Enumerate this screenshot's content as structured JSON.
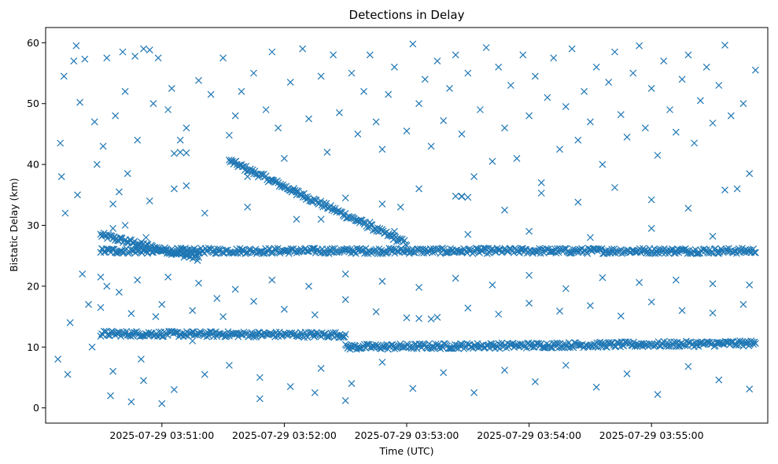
{
  "chart_data": {
    "type": "scatter",
    "title": "Detections in Delay",
    "xlabel": "Time (UTC)",
    "ylabel": "Bistatic Delay (km)",
    "marker": "x",
    "color": "#1f77b4",
    "x_unit": "minutes after 2025-07-29 03:50:00 UTC",
    "xlim": [
      -0.45,
      5.45
    ],
    "ylim": [
      -2.5,
      62.5
    ],
    "x_ticks": [
      {
        "value": 0.5,
        "label": "2025-07-29 03:51:00"
      },
      {
        "value": 1.5,
        "label": "2025-07-29 03:52:00"
      },
      {
        "value": 2.5,
        "label": "2025-07-29 03:53:00"
      },
      {
        "value": 3.5,
        "label": "2025-07-29 03:54:00"
      },
      {
        "value": 4.5,
        "label": "2025-07-29 03:55:00"
      }
    ],
    "y_ticks": [
      0,
      10,
      20,
      30,
      40,
      50,
      60
    ],
    "grid": false,
    "legend": "none",
    "tracks": [
      {
        "description": "descending track",
        "x_start": 0.0,
        "x_end": 0.8,
        "y_start": 28.4,
        "y_end": 24.6
      },
      {
        "description": "descending track",
        "x_start": 1.05,
        "x_end": 2.5,
        "y_start": 40.6,
        "y_end": 27.0
      },
      {
        "description": "steady track",
        "x_start": 0.0,
        "x_end": 5.35,
        "y_start": 25.8,
        "y_end": 25.8
      },
      {
        "description": "steady track",
        "x_start": 0.0,
        "x_end": 2.0,
        "y_start": 12.2,
        "y_end": 12.0
      },
      {
        "description": "steady track",
        "x_start": 2.0,
        "x_end": 5.35,
        "y_start": 10.0,
        "y_end": 10.6
      }
    ],
    "series": [
      {
        "points": [
          [
            -0.35,
            8
          ],
          [
            -0.33,
            43.5
          ],
          [
            -0.32,
            38
          ],
          [
            -0.3,
            54.5
          ],
          [
            -0.29,
            32
          ],
          [
            -0.27,
            5.5
          ],
          [
            -0.25,
            14
          ],
          [
            -0.22,
            57
          ],
          [
            -0.2,
            59.5
          ],
          [
            -0.19,
            35
          ],
          [
            -0.17,
            50.2
          ],
          [
            -0.15,
            22
          ],
          [
            -0.13,
            57.3
          ],
          [
            -0.1,
            17
          ],
          [
            -0.07,
            10
          ],
          [
            -0.05,
            47
          ],
          [
            -0.03,
            40
          ],
          [
            0.0,
            21.5
          ],
          [
            0.02,
            43
          ],
          [
            0.05,
            57.5
          ],
          [
            0.08,
            2
          ],
          [
            0.1,
            33.5
          ],
          [
            0.12,
            48
          ],
          [
            0.15,
            19
          ],
          [
            0.18,
            58.5
          ],
          [
            0.2,
            52
          ],
          [
            0.22,
            38.5
          ],
          [
            0.25,
            1
          ],
          [
            0.28,
            57.8
          ],
          [
            0.3,
            44
          ],
          [
            0.33,
            8
          ],
          [
            0.35,
            59
          ],
          [
            0.37,
            28
          ],
          [
            0.4,
            58.8
          ],
          [
            0.43,
            50
          ],
          [
            0.45,
            15
          ],
          [
            0.47,
            57.5
          ],
          [
            0.5,
            0.7
          ],
          [
            0.55,
            49
          ],
          [
            0.58,
            52.5
          ],
          [
            0.6,
            36
          ],
          [
            0.65,
            44
          ],
          [
            0.7,
            46
          ],
          [
            0.75,
            11
          ],
          [
            0.8,
            53.8
          ],
          [
            0.85,
            32
          ],
          [
            0.9,
            51.5
          ],
          [
            0.95,
            18
          ],
          [
            1.0,
            57.5
          ],
          [
            1.05,
            44.8
          ],
          [
            1.1,
            48
          ],
          [
            1.15,
            52
          ],
          [
            1.2,
            38
          ],
          [
            1.25,
            55
          ],
          [
            1.3,
            1.5
          ],
          [
            1.35,
            49
          ],
          [
            1.4,
            58.5
          ],
          [
            1.45,
            46
          ],
          [
            1.5,
            41
          ],
          [
            1.55,
            53.5
          ],
          [
            1.6,
            31
          ],
          [
            1.65,
            59
          ],
          [
            1.7,
            47.5
          ],
          [
            1.75,
            2.5
          ],
          [
            1.8,
            54.5
          ],
          [
            1.85,
            42
          ],
          [
            1.9,
            58
          ],
          [
            1.95,
            48.5
          ],
          [
            2.0,
            1.2
          ],
          [
            2.05,
            55
          ],
          [
            2.1,
            45
          ],
          [
            2.15,
            52
          ],
          [
            2.2,
            58
          ],
          [
            2.25,
            47
          ],
          [
            2.3,
            42.5
          ],
          [
            2.35,
            51.5
          ],
          [
            2.4,
            56
          ],
          [
            2.45,
            33
          ],
          [
            2.5,
            45.5
          ],
          [
            2.55,
            59.8
          ],
          [
            2.6,
            50
          ],
          [
            2.65,
            54
          ],
          [
            2.7,
            43
          ],
          [
            2.75,
            57
          ],
          [
            2.8,
            47.2
          ],
          [
            2.85,
            52.5
          ],
          [
            2.9,
            58
          ],
          [
            2.95,
            45
          ],
          [
            3.0,
            55
          ],
          [
            3.05,
            38
          ],
          [
            3.1,
            49
          ],
          [
            3.15,
            59.2
          ],
          [
            3.2,
            40.5
          ],
          [
            3.25,
            56
          ],
          [
            3.3,
            46
          ],
          [
            3.35,
            53
          ],
          [
            3.4,
            41
          ],
          [
            3.45,
            58
          ],
          [
            3.5,
            48
          ],
          [
            3.55,
            54.5
          ],
          [
            3.6,
            37
          ],
          [
            3.65,
            51
          ],
          [
            3.7,
            57.5
          ],
          [
            3.75,
            42.5
          ],
          [
            3.8,
            49.5
          ],
          [
            3.85,
            59
          ],
          [
            3.9,
            44
          ],
          [
            3.95,
            52
          ],
          [
            4.0,
            47
          ],
          [
            4.05,
            56
          ],
          [
            4.1,
            40
          ],
          [
            4.15,
            53.5
          ],
          [
            4.2,
            58.5
          ],
          [
            4.25,
            48.2
          ],
          [
            4.3,
            44.5
          ],
          [
            4.35,
            55
          ],
          [
            4.4,
            59.5
          ],
          [
            4.45,
            46
          ],
          [
            4.5,
            52.5
          ],
          [
            4.55,
            41.5
          ],
          [
            4.6,
            57
          ],
          [
            4.65,
            49
          ],
          [
            4.7,
            45.3
          ],
          [
            4.75,
            54
          ],
          [
            4.8,
            58
          ],
          [
            4.85,
            43.5
          ],
          [
            4.9,
            50.5
          ],
          [
            4.95,
            56
          ],
          [
            5.0,
            46.8
          ],
          [
            5.05,
            53
          ],
          [
            5.1,
            59.6
          ],
          [
            5.15,
            48
          ],
          [
            5.2,
            36
          ],
          [
            5.25,
            50
          ],
          [
            5.3,
            38.5
          ],
          [
            5.35,
            55.5
          ],
          [
            0.6,
            41.8
          ],
          [
            0.65,
            42
          ],
          [
            0.7,
            41.9
          ],
          [
            2.2,
            30.5
          ],
          [
            1.8,
            31
          ],
          [
            2.4,
            29
          ],
          [
            0.1,
            29.5
          ],
          [
            0.2,
            30
          ],
          [
            0.35,
            27
          ],
          [
            3.0,
            28.5
          ],
          [
            3.5,
            29
          ],
          [
            4.0,
            28
          ],
          [
            4.5,
            29.5
          ],
          [
            5.0,
            28.2
          ],
          [
            0.05,
            20
          ],
          [
            0.3,
            21
          ],
          [
            0.55,
            21.5
          ],
          [
            0.8,
            20.5
          ],
          [
            1.1,
            19.5
          ],
          [
            1.4,
            21
          ],
          [
            1.7,
            20
          ],
          [
            2.0,
            22
          ],
          [
            2.3,
            20.8
          ],
          [
            2.6,
            19.8
          ],
          [
            2.9,
            21.3
          ],
          [
            3.2,
            20.2
          ],
          [
            3.5,
            21.8
          ],
          [
            3.8,
            19.6
          ],
          [
            4.1,
            21.4
          ],
          [
            4.4,
            20.6
          ],
          [
            4.7,
            21
          ],
          [
            5.0,
            20.4
          ],
          [
            5.3,
            20.2
          ],
          [
            0.0,
            16.5
          ],
          [
            0.25,
            15.5
          ],
          [
            0.5,
            17
          ],
          [
            0.75,
            16
          ],
          [
            1.0,
            15
          ],
          [
            1.25,
            17.5
          ],
          [
            1.5,
            16.2
          ],
          [
            1.75,
            15.3
          ],
          [
            2.0,
            17.8
          ],
          [
            2.25,
            15.8
          ],
          [
            2.5,
            14.8
          ],
          [
            2.6,
            14.7
          ],
          [
            2.7,
            14.6
          ],
          [
            2.75,
            14.9
          ],
          [
            3.0,
            16.4
          ],
          [
            3.25,
            15.4
          ],
          [
            3.5,
            17.2
          ],
          [
            3.75,
            15.9
          ],
          [
            4.0,
            16.8
          ],
          [
            4.25,
            15.1
          ],
          [
            4.5,
            17.4
          ],
          [
            4.75,
            16
          ],
          [
            5.0,
            15.6
          ],
          [
            5.25,
            17
          ],
          [
            0.1,
            6
          ],
          [
            0.35,
            4.5
          ],
          [
            0.6,
            3
          ],
          [
            0.85,
            5.5
          ],
          [
            1.05,
            7
          ],
          [
            1.3,
            5
          ],
          [
            1.55,
            3.5
          ],
          [
            1.8,
            6.5
          ],
          [
            2.05,
            4
          ],
          [
            2.3,
            7.5
          ],
          [
            2.55,
            3.2
          ],
          [
            2.8,
            5.8
          ],
          [
            3.05,
            2.5
          ],
          [
            3.3,
            6.2
          ],
          [
            3.55,
            4.3
          ],
          [
            3.8,
            7
          ],
          [
            4.05,
            3.4
          ],
          [
            4.3,
            5.6
          ],
          [
            4.55,
            2.2
          ],
          [
            4.8,
            6.8
          ],
          [
            5.05,
            4.6
          ],
          [
            5.3,
            3.1
          ],
          [
            0.15,
            35.5
          ],
          [
            0.4,
            34
          ],
          [
            0.7,
            36.5
          ],
          [
            1.2,
            33
          ],
          [
            1.6,
            35
          ],
          [
            2.0,
            34.5
          ],
          [
            2.3,
            33.5
          ],
          [
            2.6,
            36
          ],
          [
            2.95,
            34.8
          ],
          [
            3.3,
            32.5
          ],
          [
            3.6,
            35.3
          ],
          [
            3.9,
            33.8
          ],
          [
            4.2,
            36.2
          ],
          [
            4.5,
            34.2
          ],
          [
            4.8,
            32.8
          ],
          [
            5.1,
            35.8
          ],
          [
            2.9,
            34.8
          ],
          [
            2.95,
            34.7
          ],
          [
            3.0,
            34.6
          ]
        ]
      }
    ]
  }
}
